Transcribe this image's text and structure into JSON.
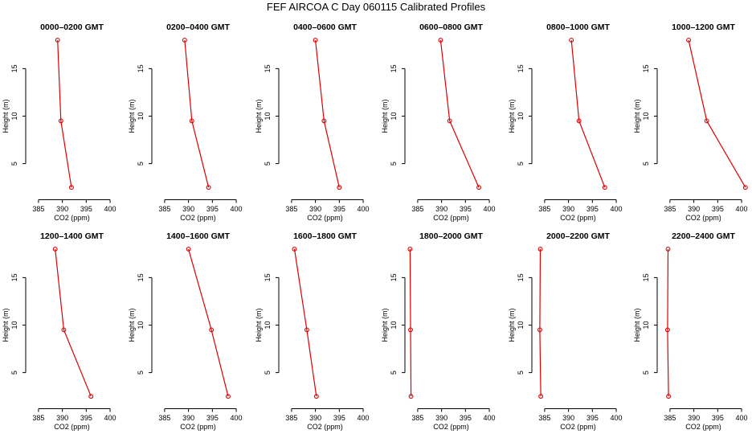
{
  "title": "FEF AIRCOA C  Day 060115  Calibrated Profiles",
  "colors": {
    "profile": "#dd0000",
    "axis": "#000000"
  },
  "chart_data": [
    {
      "type": "line",
      "title": "0000–0200 GMT",
      "xlabel": "CO2 (ppm)",
      "ylabel": "Height (m)",
      "xlim": [
        383,
        401
      ],
      "ylim": [
        1.5,
        18.5
      ],
      "xticks": [
        385,
        390,
        395,
        400
      ],
      "yticks": [
        5,
        10,
        15
      ],
      "series": [
        {
          "x": [
            389.0,
            389.7,
            391.9
          ],
          "y": [
            18,
            9.5,
            2.5
          ]
        }
      ]
    },
    {
      "type": "line",
      "title": "0200–0400 GMT",
      "xlabel": "CO2 (ppm)",
      "ylabel": "Height (m)",
      "xlim": [
        383,
        401
      ],
      "ylim": [
        1.5,
        18.5
      ],
      "xticks": [
        385,
        390,
        395,
        400
      ],
      "yticks": [
        5,
        10,
        15
      ],
      "series": [
        {
          "x": [
            389.2,
            390.7,
            394.2
          ],
          "y": [
            18,
            9.5,
            2.5
          ]
        }
      ]
    },
    {
      "type": "line",
      "title": "0400–0600 GMT",
      "xlabel": "CO2 (ppm)",
      "ylabel": "Height (m)",
      "xlim": [
        383,
        401
      ],
      "ylim": [
        1.5,
        18.5
      ],
      "xticks": [
        385,
        390,
        395,
        400
      ],
      "yticks": [
        5,
        10,
        15
      ],
      "series": [
        {
          "x": [
            390.0,
            391.8,
            395.0
          ],
          "y": [
            18,
            9.5,
            2.5
          ]
        }
      ]
    },
    {
      "type": "line",
      "title": "0600–0800 GMT",
      "xlabel": "CO2 (ppm)",
      "ylabel": "Height (m)",
      "xlim": [
        383,
        401
      ],
      "ylim": [
        1.5,
        18.5
      ],
      "xticks": [
        385,
        390,
        395,
        400
      ],
      "yticks": [
        5,
        10,
        15
      ],
      "series": [
        {
          "x": [
            389.8,
            391.7,
            397.8
          ],
          "y": [
            18,
            9.5,
            2.5
          ]
        }
      ]
    },
    {
      "type": "line",
      "title": "0800–1000 GMT",
      "xlabel": "CO2 (ppm)",
      "ylabel": "Height (m)",
      "xlim": [
        383,
        401
      ],
      "ylim": [
        1.5,
        18.5
      ],
      "xticks": [
        385,
        390,
        395,
        400
      ],
      "yticks": [
        5,
        10,
        15
      ],
      "series": [
        {
          "x": [
            390.6,
            392.2,
            397.6
          ],
          "y": [
            18,
            9.5,
            2.5
          ]
        }
      ]
    },
    {
      "type": "line",
      "title": "1000–1200 GMT",
      "xlabel": "CO2 (ppm)",
      "ylabel": "Height (m)",
      "xlim": [
        383,
        401
      ],
      "ylim": [
        1.5,
        18.5
      ],
      "xticks": [
        385,
        390,
        395,
        400
      ],
      "yticks": [
        5,
        10,
        15
      ],
      "series": [
        {
          "x": [
            388.9,
            392.7,
            400.8
          ],
          "y": [
            18,
            9.5,
            2.5
          ]
        }
      ]
    },
    {
      "type": "line",
      "title": "1200–1400 GMT",
      "xlabel": "CO2 (ppm)",
      "ylabel": "Height (m)",
      "xlim": [
        383,
        401
      ],
      "ylim": [
        1.5,
        18.5
      ],
      "xticks": [
        385,
        390,
        395,
        400
      ],
      "yticks": [
        5,
        10,
        15
      ],
      "series": [
        {
          "x": [
            388.5,
            390.3,
            396.0
          ],
          "y": [
            18,
            9.5,
            2.5
          ]
        }
      ]
    },
    {
      "type": "line",
      "title": "1400–1600 GMT",
      "xlabel": "CO2 (ppm)",
      "ylabel": "Height (m)",
      "xlim": [
        383,
        401
      ],
      "ylim": [
        1.5,
        18.5
      ],
      "xticks": [
        385,
        390,
        395,
        400
      ],
      "yticks": [
        5,
        10,
        15
      ],
      "series": [
        {
          "x": [
            390.0,
            394.8,
            398.3
          ],
          "y": [
            18,
            9.5,
            2.5
          ]
        }
      ]
    },
    {
      "type": "line",
      "title": "1600–1800 GMT",
      "xlabel": "CO2 (ppm)",
      "ylabel": "Height (m)",
      "xlim": [
        383,
        401
      ],
      "ylim": [
        1.5,
        18.5
      ],
      "xticks": [
        385,
        390,
        395,
        400
      ],
      "yticks": [
        5,
        10,
        15
      ],
      "series": [
        {
          "x": [
            385.6,
            388.2,
            390.2
          ],
          "y": [
            18,
            9.5,
            2.5
          ]
        }
      ]
    },
    {
      "type": "line",
      "title": "1800–2000 GMT",
      "xlabel": "CO2 (ppm)",
      "ylabel": "Height (m)",
      "xlim": [
        383,
        401
      ],
      "ylim": [
        1.5,
        18.5
      ],
      "xticks": [
        385,
        390,
        395,
        400
      ],
      "yticks": [
        5,
        10,
        15
      ],
      "series": [
        {
          "x": [
            383.4,
            383.5,
            383.6
          ],
          "y": [
            18,
            9.5,
            2.5
          ]
        }
      ]
    },
    {
      "type": "line",
      "title": "2000–2200 GMT",
      "xlabel": "CO2 (ppm)",
      "ylabel": "Height (m)",
      "xlim": [
        383,
        401
      ],
      "ylim": [
        1.5,
        18.5
      ],
      "xticks": [
        385,
        390,
        395,
        400
      ],
      "yticks": [
        5,
        10,
        15
      ],
      "series": [
        {
          "x": [
            384.1,
            384.0,
            384.2
          ],
          "y": [
            18,
            9.5,
            2.5
          ]
        }
      ]
    },
    {
      "type": "line",
      "title": "2200–2400 GMT",
      "xlabel": "CO2 (ppm)",
      "ylabel": "Height (m)",
      "xlim": [
        383,
        401
      ],
      "ylim": [
        1.5,
        18.5
      ],
      "xticks": [
        385,
        390,
        395,
        400
      ],
      "yticks": [
        5,
        10,
        15
      ],
      "series": [
        {
          "x": [
            384.6,
            384.5,
            384.7
          ],
          "y": [
            18,
            9.5,
            2.5
          ]
        }
      ]
    }
  ]
}
